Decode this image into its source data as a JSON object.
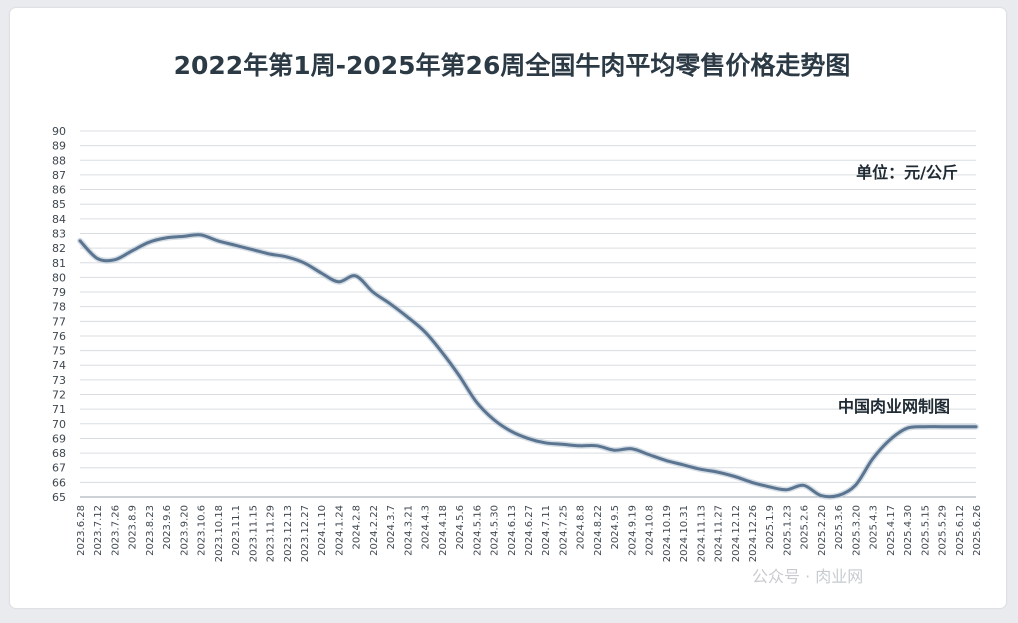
{
  "chart_data": {
    "type": "line",
    "title": "2022年第1周-2025年第26周全国牛肉平均零售价格走势图",
    "unit_label": "单位：元/公斤",
    "source_label": "中国肉业网制图",
    "ylim": [
      65,
      90
    ],
    "yticks": [
      65,
      66,
      67,
      68,
      69,
      70,
      71,
      72,
      73,
      74,
      75,
      76,
      77,
      78,
      79,
      80,
      81,
      82,
      83,
      84,
      85,
      86,
      87,
      88,
      89,
      90
    ],
    "grid": true,
    "legend": "none",
    "line_color": "#5b7591",
    "x": [
      "2023.6.28",
      "2023.7.12",
      "2023.7.26",
      "2023.8.9",
      "2023.8.23",
      "2023.9.6",
      "2023.9.20",
      "2023.10.6",
      "2023.10.18",
      "2023.11.1",
      "2023.11.15",
      "2023.11.29",
      "2023.12.13",
      "2023.12.27",
      "2024.1.10",
      "2024.1.24",
      "2024.2.8",
      "2024.2.22",
      "2024.3.7",
      "2024.3.21",
      "2024.4.3",
      "2024.4.18",
      "2024.5.6",
      "2024.5.16",
      "2024.5.30",
      "2024.6.13",
      "2024.6.27",
      "2024.7.11",
      "2024.7.25",
      "2024.8.8",
      "2024.8.22",
      "2024.9.5",
      "2024.9.19",
      "2024.10.8",
      "2024.10.19",
      "2024.10.31",
      "2024.11.13",
      "2024.11.27",
      "2024.12.12",
      "2024.12.26",
      "2025.1.9",
      "2025.1.23",
      "2025.2.6",
      "2025.2.20",
      "2025.3.6",
      "2025.3.20",
      "2025.4.3",
      "2025.4.17",
      "2025.4.30",
      "2025.5.15",
      "2025.5.29",
      "2025.6.12",
      "2025.6.26"
    ],
    "values": [
      82.5,
      81.3,
      81.2,
      81.8,
      82.4,
      82.7,
      82.8,
      82.9,
      82.5,
      82.2,
      81.9,
      81.6,
      81.4,
      81.0,
      80.3,
      79.7,
      80.1,
      79.0,
      78.2,
      77.3,
      76.3,
      74.9,
      73.3,
      71.5,
      70.3,
      69.5,
      69.0,
      68.7,
      68.6,
      68.5,
      68.5,
      68.2,
      68.3,
      67.9,
      67.5,
      67.2,
      66.9,
      66.7,
      66.4,
      66.0,
      65.7,
      65.5,
      65.8,
      65.1,
      65.1,
      65.8,
      67.6,
      68.9,
      69.7,
      69.8,
      69.8,
      69.8,
      69.8
    ]
  },
  "watermark": "公众号 · 肉业网"
}
